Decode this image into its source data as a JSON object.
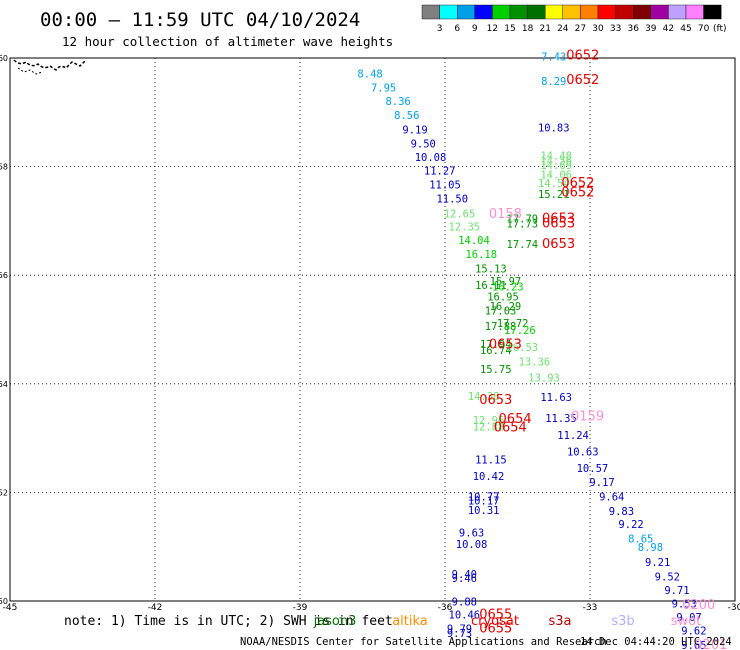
{
  "header": {
    "title": "00:00 – 11:59 UTC 04/10/2024",
    "subtitle": "12 hour collection of altimeter wave heights"
  },
  "colorbar": {
    "labels": [
      "3",
      "6",
      "9",
      "12",
      "15",
      "18",
      "21",
      "24",
      "27",
      "30",
      "33",
      "36",
      "39",
      "42",
      "45",
      "70"
    ],
    "unit": "(ft)",
    "colors": [
      "#808080",
      "#00ffff",
      "#00a0e8",
      "#0000ff",
      "#00d000",
      "#009000",
      "#007000",
      "#ffff00",
      "#ffc000",
      "#ff8000",
      "#ff0000",
      "#c00000",
      "#800000",
      "#a000a0",
      "#c0a0ff",
      "#ff80ff",
      "#000000"
    ]
  },
  "footer": {
    "note": "note: 1) Time is in UTC; 2) SWH is in feet",
    "legend": [
      {
        "name": "jason3",
        "color": "#007000"
      },
      {
        "name": "altika",
        "color": "#ff8c00"
      },
      {
        "name": "cryosat",
        "color": "#e00000"
      },
      {
        "name": "s3a",
        "color": "#b00000"
      },
      {
        "name": "s3b",
        "color": "#b0b0ff"
      },
      {
        "name": "swot",
        "color": "#ff90d0"
      }
    ],
    "credit": "NOAA/NESDIS Center for Satellite Applications and Research",
    "generated": "14 Dec 04:44:20 UTC 2024"
  },
  "chart_data": {
    "type": "scatter",
    "xlim": [
      -45,
      -30
    ],
    "ylim": [
      50,
      60
    ],
    "grid": true,
    "x_ticks": [
      "-45",
      "-42",
      "-39",
      "-36",
      "-33",
      "-30"
    ],
    "y_ticks": [
      "50",
      "52",
      "54",
      "56",
      "58",
      "60"
    ],
    "values": [
      {
        "x": -37.55,
        "y": 59.64,
        "label": "8.48",
        "color": "#00a0e8"
      },
      {
        "x": -37.27,
        "y": 59.38,
        "label": "7.95",
        "color": "#00a0e8"
      },
      {
        "x": -36.97,
        "y": 59.13,
        "label": "8.36",
        "color": "#00a0e8"
      },
      {
        "x": -36.79,
        "y": 58.88,
        "label": "8.56",
        "color": "#00a0e8"
      },
      {
        "x": -36.62,
        "y": 58.61,
        "label": "9.19",
        "color": "#0000c0"
      },
      {
        "x": -36.45,
        "y": 58.35,
        "label": "9.50",
        "color": "#0000c0"
      },
      {
        "x": -36.3,
        "y": 58.1,
        "label": "10.08",
        "color": "#0000c0"
      },
      {
        "x": -36.11,
        "y": 57.85,
        "label": "11.27",
        "color": "#0000c0"
      },
      {
        "x": -36.0,
        "y": 57.6,
        "label": "11.05",
        "color": "#0000c0"
      },
      {
        "x": -35.85,
        "y": 57.34,
        "label": "11.50",
        "color": "#0000c0"
      },
      {
        "x": -35.7,
        "y": 57.06,
        "label": "12.65",
        "color": "#70e070"
      },
      {
        "x": -35.6,
        "y": 56.82,
        "label": "12.35",
        "color": "#70e070"
      },
      {
        "x": -35.4,
        "y": 56.57,
        "label": "14.04",
        "color": "#00d000"
      },
      {
        "x": -35.25,
        "y": 56.32,
        "label": "16.18",
        "color": "#00d000"
      },
      {
        "x": -35.05,
        "y": 56.05,
        "label": "15.13",
        "color": "#009000"
      },
      {
        "x": -34.75,
        "y": 55.82,
        "label": "15.97",
        "color": "#009000"
      },
      {
        "x": -35.05,
        "y": 55.75,
        "label": "16.11",
        "color": "#009000"
      },
      {
        "x": -34.7,
        "y": 55.72,
        "label": "16.23",
        "color": "#00d000"
      },
      {
        "x": -34.8,
        "y": 55.53,
        "label": "16.95",
        "color": "#009000"
      },
      {
        "x": -34.75,
        "y": 55.36,
        "label": "16.29",
        "color": "#009000"
      },
      {
        "x": -34.85,
        "y": 55.28,
        "label": "17.03",
        "color": "#009000"
      },
      {
        "x": -34.6,
        "y": 55.05,
        "label": "17.72",
        "color": "#009000"
      },
      {
        "x": -34.85,
        "y": 54.99,
        "label": "17.88",
        "color": "#009000"
      },
      {
        "x": -34.45,
        "y": 54.92,
        "label": "17.26",
        "color": "#00d000"
      },
      {
        "x": -34.95,
        "y": 54.66,
        "label": "17.94",
        "color": "#009000"
      },
      {
        "x": -34.95,
        "y": 54.55,
        "label": "16.74",
        "color": "#009000"
      },
      {
        "x": -34.4,
        "y": 54.6,
        "label": "16.53",
        "color": "#70e070"
      },
      {
        "x": -34.15,
        "y": 54.34,
        "label": "13.36",
        "color": "#70e070"
      },
      {
        "x": -34.95,
        "y": 54.2,
        "label": "15.75",
        "color": "#009000"
      },
      {
        "x": -33.95,
        "y": 54.04,
        "label": "13.93",
        "color": "#70e070"
      },
      {
        "x": -35.2,
        "y": 53.7,
        "label": "14.38",
        "color": "#70e070"
      },
      {
        "x": -33.7,
        "y": 53.68,
        "label": "11.63",
        "color": "#0000c0"
      },
      {
        "x": -35.1,
        "y": 53.26,
        "label": "12.96",
        "color": "#70e070"
      },
      {
        "x": -35.1,
        "y": 53.14,
        "label": "12.88",
        "color": "#70e070"
      },
      {
        "x": -33.6,
        "y": 53.3,
        "label": "11.35",
        "color": "#0000c0"
      },
      {
        "x": -33.35,
        "y": 52.98,
        "label": "11.24",
        "color": "#0000c0"
      },
      {
        "x": -35.05,
        "y": 52.53,
        "label": "11.15",
        "color": "#0000c0"
      },
      {
        "x": -33.15,
        "y": 52.68,
        "label": "10.63",
        "color": "#0000c0"
      },
      {
        "x": -32.95,
        "y": 52.38,
        "label": "10.57",
        "color": "#0000c0"
      },
      {
        "x": -35.1,
        "y": 52.23,
        "label": "10.42",
        "color": "#0000c0"
      },
      {
        "x": -32.75,
        "y": 52.12,
        "label": "9.17",
        "color": "#0000c0"
      },
      {
        "x": -35.2,
        "y": 51.85,
        "label": "10.77",
        "color": "#0000c0"
      },
      {
        "x": -35.2,
        "y": 51.78,
        "label": "10.17",
        "color": "#0000c0"
      },
      {
        "x": -32.55,
        "y": 51.85,
        "label": "9.64",
        "color": "#0000c0"
      },
      {
        "x": -35.2,
        "y": 51.6,
        "label": "10.31",
        "color": "#0000c0"
      },
      {
        "x": -32.35,
        "y": 51.58,
        "label": "9.83",
        "color": "#0000c0"
      },
      {
        "x": -32.15,
        "y": 51.34,
        "label": "9.22",
        "color": "#0000c0"
      },
      {
        "x": -35.45,
        "y": 51.19,
        "label": "9.63",
        "color": "#0000c0"
      },
      {
        "x": -31.95,
        "y": 51.08,
        "label": "8.65",
        "color": "#00a0e8"
      },
      {
        "x": -35.45,
        "y": 50.98,
        "label": "10.08",
        "color": "#0000c0"
      },
      {
        "x": -31.75,
        "y": 50.92,
        "label": "8.98",
        "color": "#00a0e8"
      },
      {
        "x": -31.6,
        "y": 50.64,
        "label": "9.21",
        "color": "#0000c0"
      },
      {
        "x": -35.6,
        "y": 50.42,
        "label": "9.40",
        "color": "#0000c0"
      },
      {
        "x": -35.6,
        "y": 50.35,
        "label": "9.46",
        "color": "#0000c0"
      },
      {
        "x": -31.4,
        "y": 50.38,
        "label": "9.52",
        "color": "#0000c0"
      },
      {
        "x": -31.2,
        "y": 50.13,
        "label": "9.71",
        "color": "#0000c0"
      },
      {
        "x": -35.6,
        "y": 49.92,
        "label": "9.88",
        "color": "#0000c0"
      },
      {
        "x": -31.05,
        "y": 49.88,
        "label": "9.53",
        "color": "#0000c0"
      },
      {
        "x": -35.6,
        "y": 49.68,
        "label": "10.46",
        "color": "#0000c0"
      },
      {
        "x": -30.95,
        "y": 49.63,
        "label": "9.07",
        "color": "#0000c0"
      },
      {
        "x": -35.7,
        "y": 49.42,
        "label": "9.79",
        "color": "#0000c0"
      },
      {
        "x": -30.85,
        "y": 49.38,
        "label": "9.62",
        "color": "#0000c0"
      },
      {
        "x": -35.7,
        "y": 49.34,
        "label": "9.73",
        "color": "#0000c0"
      },
      {
        "x": -30.85,
        "y": 49.12,
        "label": "9.65",
        "color": "#0000c0"
      },
      {
        "x": -33.75,
        "y": 59.95,
        "label": "7.43",
        "color": "#00a0e8"
      },
      {
        "x": -33.75,
        "y": 59.5,
        "label": "8.29",
        "color": "#00a0e8"
      },
      {
        "x": -33.75,
        "y": 58.65,
        "label": "10.83",
        "color": "#0000c0"
      },
      {
        "x": -33.7,
        "y": 58.13,
        "label": "14.48",
        "color": "#70e070"
      },
      {
        "x": -33.7,
        "y": 58.04,
        "label": "14.56",
        "color": "#70e070"
      },
      {
        "x": -33.7,
        "y": 57.96,
        "label": "14.69",
        "color": "#70e070"
      },
      {
        "x": -33.7,
        "y": 57.78,
        "label": "14.06",
        "color": "#70e070"
      },
      {
        "x": -33.75,
        "y": 57.62,
        "label": "14.54",
        "color": "#70e070"
      },
      {
        "x": -33.75,
        "y": 57.42,
        "label": "15.21",
        "color": "#009000"
      },
      {
        "x": -34.4,
        "y": 56.97,
        "label": "17.79",
        "color": "#009000"
      },
      {
        "x": -34.4,
        "y": 56.88,
        "label": "17.73",
        "color": "#009000"
      },
      {
        "x": -34.4,
        "y": 56.5,
        "label": "17.74",
        "color": "#009000"
      },
      {
        "x": -33.15,
        "y": 59.97,
        "label": "0652",
        "color": "#e00000",
        "large": true
      },
      {
        "x": -33.15,
        "y": 59.52,
        "label": "0652",
        "color": "#e00000",
        "large": true
      },
      {
        "x": -33.25,
        "y": 57.62,
        "label": "0652",
        "color": "#e00000",
        "large": true
      },
      {
        "x": -33.25,
        "y": 57.45,
        "label": "0652",
        "color": "#e00000",
        "large": true
      },
      {
        "x": -33.65,
        "y": 56.97,
        "label": "0653",
        "color": "#e00000",
        "large": true
      },
      {
        "x": -33.65,
        "y": 56.88,
        "label": "0653",
        "color": "#e00000",
        "large": true
      },
      {
        "x": -33.65,
        "y": 56.5,
        "label": "0653",
        "color": "#e00000",
        "large": true
      },
      {
        "x": -34.75,
        "y": 57.05,
        "label": "0158",
        "color": "#ff90d0",
        "large": true
      },
      {
        "x": -34.75,
        "y": 54.65,
        "label": "0653",
        "color": "#e00000",
        "large": true
      },
      {
        "x": -34.95,
        "y": 53.63,
        "label": "0653",
        "color": "#e00000",
        "large": true
      },
      {
        "x": -34.55,
        "y": 53.28,
        "label": "0654",
        "color": "#e00000",
        "large": true
      },
      {
        "x": -34.65,
        "y": 53.12,
        "label": "0654",
        "color": "#e00000",
        "large": true
      },
      {
        "x": -33.05,
        "y": 53.32,
        "label": "0159",
        "color": "#ff90d0",
        "large": true
      },
      {
        "x": -34.95,
        "y": 49.68,
        "label": "0655",
        "color": "#e00000",
        "large": true
      },
      {
        "x": -34.95,
        "y": 49.42,
        "label": "0655",
        "color": "#e00000",
        "large": true
      },
      {
        "x": -30.75,
        "y": 49.85,
        "label": "0200",
        "color": "#ff90d0",
        "large": true
      },
      {
        "x": -30.5,
        "y": 49.12,
        "label": "0201",
        "color": "#ff90d0",
        "large": true
      }
    ]
  }
}
